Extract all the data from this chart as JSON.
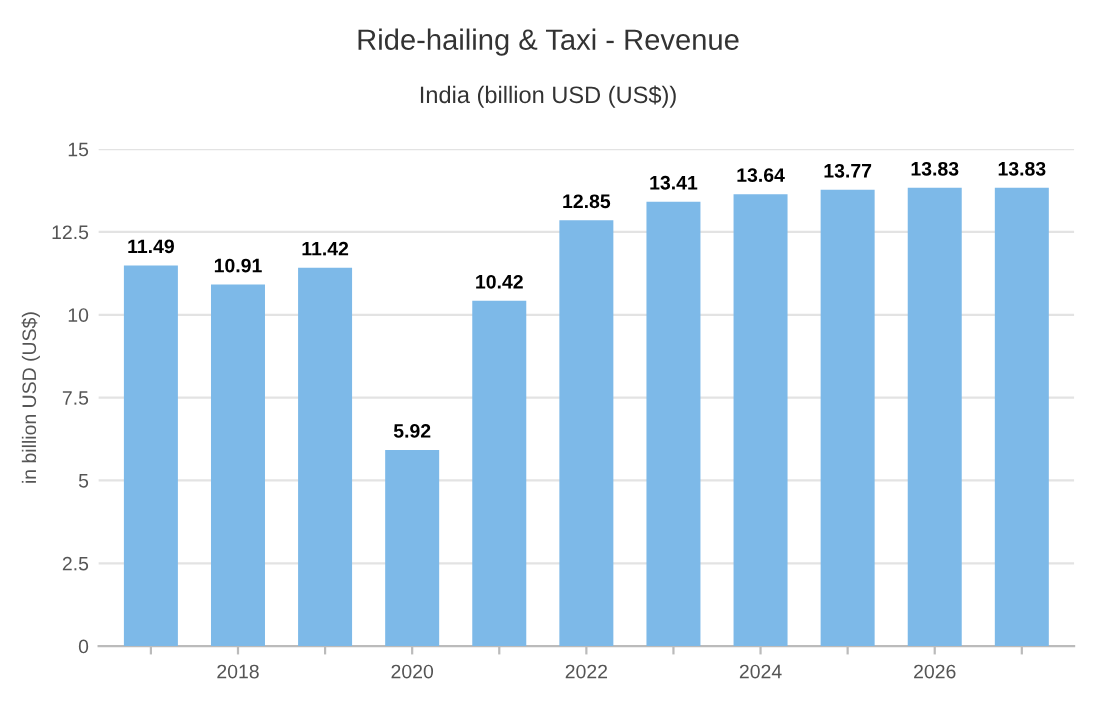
{
  "chart_data": {
    "type": "bar",
    "title": "Ride-hailing & Taxi - Revenue",
    "subtitle": "India (billion USD (US$))",
    "ylabel": "in billion USD (US$)",
    "categories": [
      null,
      "2018",
      null,
      "2020",
      null,
      "2022",
      null,
      "2024",
      null,
      "2026",
      null
    ],
    "values": [
      11.49,
      10.91,
      11.42,
      5.92,
      10.42,
      12.85,
      13.41,
      13.64,
      13.77,
      13.83,
      13.83
    ],
    "color": "#7db9e8",
    "ylim": [
      0,
      15
    ],
    "yticks": [
      0,
      2.5,
      5,
      7.5,
      10,
      12.5,
      15
    ],
    "grid": "y",
    "data_labels": true
  }
}
